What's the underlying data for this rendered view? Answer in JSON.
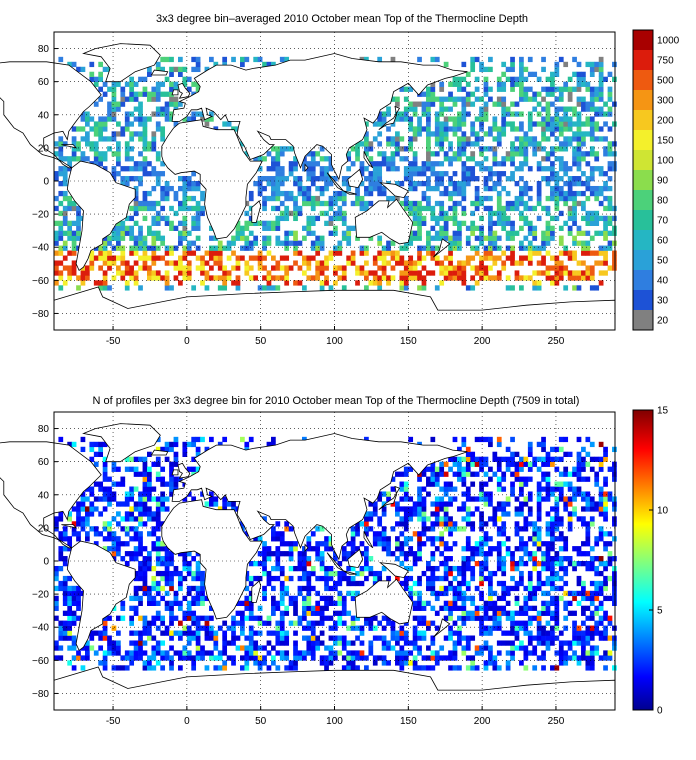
{
  "panels": [
    {
      "title": "3x3 degree bin–averaged 2010 October mean Top of the Thermocline Depth",
      "x_ticks": [
        "-50",
        "0",
        "50",
        "100",
        "150",
        "200",
        "250"
      ],
      "y_ticks": [
        "80",
        "60",
        "40",
        "20",
        "0",
        "−20",
        "−40",
        "−60",
        "−80"
      ],
      "colorbar": {
        "labels": [
          "20",
          "30",
          "40",
          "50",
          "60",
          "70",
          "80",
          "90",
          "100",
          "150",
          "200",
          "300",
          "500",
          "750",
          "1000"
        ],
        "colors": [
          "#808080",
          "#1d52d6",
          "#2f7ee0",
          "#2aa1d8",
          "#25b6c3",
          "#28c09a",
          "#4cd17a",
          "#8bdd4d",
          "#cfe533",
          "#f4f02b",
          "#f7c81f",
          "#f59514",
          "#ee5a10",
          "#dc1c0c",
          "#a80000"
        ]
      }
    },
    {
      "title": "N of profiles per 3x3 degree bin for 2010 October mean Top of the Thermocline Depth  (7509 in total)",
      "x_ticks": [
        "-50",
        "0",
        "50",
        "100",
        "150",
        "200",
        "250"
      ],
      "y_ticks": [
        "80",
        "60",
        "40",
        "20",
        "0",
        "−20",
        "−40",
        "−60",
        "−80"
      ],
      "colorbar": {
        "labels": [
          "0",
          "5",
          "10",
          "15"
        ],
        "range": [
          0,
          15
        ]
      }
    }
  ]
}
